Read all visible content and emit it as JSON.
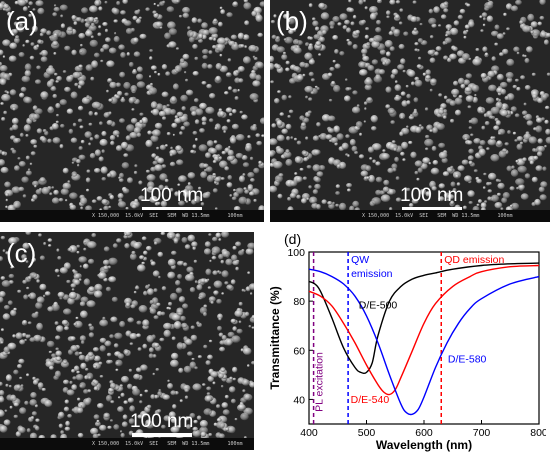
{
  "panels": [
    {
      "label": "(a)",
      "scale_bar": "100 nm",
      "info": "X 150,000  15.0kV  SEI   SEM  WD 13.5mm      100nm"
    },
    {
      "label": "(b)",
      "scale_bar": "100 nm",
      "info": "X 150,000  15.0kV  SEI   SEM  WD 13.5mm      100nm"
    },
    {
      "label": "(c)",
      "scale_bar": "100 nm",
      "info": "X 150,000  15.0kV  SEI   SEM  WD 13.5mm      100nm"
    }
  ],
  "chart_data": {
    "type": "line",
    "panel_label": "(d)",
    "xlabel": "Wavelength (nm)",
    "ylabel": "Transmittance (%)",
    "xlim": [
      400,
      800
    ],
    "ylim": [
      30,
      100
    ],
    "xticks": [
      400,
      500,
      600,
      700,
      800
    ],
    "yticks": [
      40,
      60,
      80,
      100
    ],
    "grid": false,
    "series": [
      {
        "name": "D/E-500",
        "color": "#000000",
        "x": [
          400,
          410,
          420,
          440,
          460,
          480,
          490,
          500,
          510,
          520,
          540,
          560,
          580,
          600,
          620,
          650,
          700,
          750,
          800
        ],
        "y": [
          88,
          87,
          84,
          73,
          61,
          53,
          51,
          51,
          55,
          66,
          80,
          86,
          89,
          90.5,
          91.5,
          93,
          94.5,
          95.2,
          95.5
        ]
      },
      {
        "name": "D/E-540",
        "color": "#ff0000",
        "x": [
          400,
          420,
          440,
          460,
          480,
          500,
          520,
          530,
          540,
          550,
          560,
          580,
          600,
          620,
          650,
          680,
          700,
          750,
          800
        ],
        "y": [
          84,
          82,
          78,
          71,
          63,
          54,
          46,
          43,
          42,
          44,
          49,
          60,
          71,
          79,
          86,
          90,
          92,
          94,
          94.5
        ]
      },
      {
        "name": "D/E-580",
        "color": "#0000ff",
        "x": [
          400,
          420,
          440,
          460,
          480,
          500,
          520,
          540,
          560,
          570,
          580,
          590,
          600,
          620,
          640,
          660,
          680,
          700,
          750,
          800
        ],
        "y": [
          93,
          92,
          90,
          87,
          82,
          74,
          63,
          50,
          38,
          34.5,
          34,
          36,
          41,
          53,
          63,
          71,
          77,
          81,
          87,
          90
        ]
      }
    ],
    "annotations": [
      {
        "text": "QW",
        "text2": "emission",
        "x": 468,
        "color": "#0000ff",
        "line_color": "#0000ff"
      },
      {
        "text": "QD emission",
        "x": 630,
        "color": "#ff0000",
        "line_color": "#ff0000"
      },
      {
        "text": "PL excitation",
        "x": 408,
        "color": "#800080",
        "line_color": "#800080"
      }
    ],
    "series_labels": [
      {
        "text": "D/E-500",
        "x": 520,
        "y": 77,
        "color": "#000000"
      },
      {
        "text": "D/E-540",
        "x": 506,
        "y": 38.5,
        "color": "#ff0000"
      },
      {
        "text": "D/E-580",
        "x": 675,
        "y": 55,
        "color": "#0000ff"
      }
    ]
  }
}
